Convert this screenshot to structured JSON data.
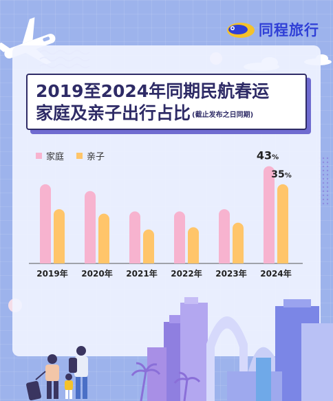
{
  "brand": {
    "name": "同程旅行"
  },
  "title": {
    "line1": "2019至2024年同期民航春运",
    "line2": "家庭及亲子出行占比",
    "note": "(截止发布之日同期)"
  },
  "colors": {
    "family": "#f7b3cf",
    "parent_child": "#ffc56a",
    "axis": "#555555"
  },
  "chart_data": {
    "type": "bar",
    "categories": [
      "2019年",
      "2020年",
      "2021年",
      "2022年",
      "2023年",
      "2024年"
    ],
    "series": [
      {
        "name": "家庭",
        "values": [
          35,
          32,
          23,
          23,
          24,
          43
        ]
      },
      {
        "name": "亲子",
        "values": [
          24,
          22,
          15,
          16,
          18,
          35
        ]
      }
    ],
    "data_labels": [
      {
        "category": "2024年",
        "series": "家庭",
        "value": "43",
        "unit": "%"
      },
      {
        "category": "2024年",
        "series": "亲子",
        "value": "35",
        "unit": "%"
      }
    ],
    "ylim": [
      0,
      45
    ],
    "legend": "top-left",
    "grid": false
  }
}
